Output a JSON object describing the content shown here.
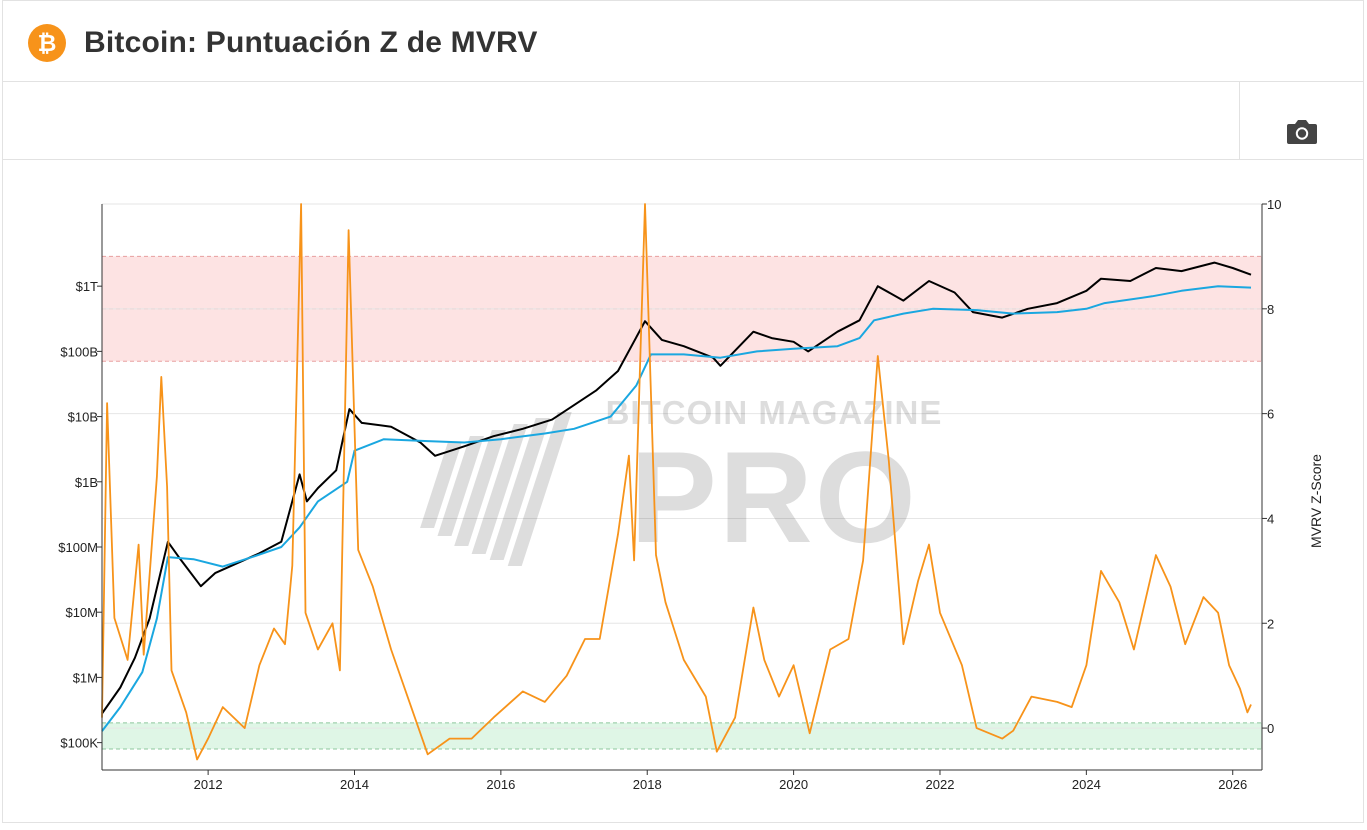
{
  "header": {
    "title": "Bitcoin: Puntuación Z de MVRV",
    "logo_icon": "bitcoin-logo-icon",
    "logo_color": "#f7931a"
  },
  "toolbar": {
    "camera_icon": "camera-icon"
  },
  "watermark": {
    "line1": "BITCOIN MAGAZINE",
    "line2": "PRO"
  },
  "colors": {
    "price": "#000000",
    "realized": "#1aa7e0",
    "zscore": "#f7931a",
    "red_band": "#fde3e3",
    "green_band": "#dff6e6"
  },
  "chart_data": {
    "type": "line",
    "x_ticks": [
      "2012",
      "2014",
      "2016",
      "2018",
      "2020",
      "2022",
      "2024",
      "2026"
    ],
    "y_left_ticks": [
      "$100K",
      "$1M",
      "$10M",
      "$100M",
      "$1B",
      "$10B",
      "$100B",
      "$1T"
    ],
    "y_left_scale": "log",
    "y_right_ticks": [
      "0",
      "2",
      "4",
      "6",
      "8",
      "10"
    ],
    "y_right_label": "MVRV Z-Score",
    "y_right_range": [
      -0.8,
      10
    ],
    "zones": [
      {
        "name": "red",
        "from": 7,
        "to": 9
      },
      {
        "name": "green",
        "from": -0.4,
        "to": 0.1
      }
    ],
    "series": [
      {
        "role": "market-cap",
        "color": "#000000",
        "points": [
          [
            2010.55,
            280000
          ],
          [
            2010.8,
            700000
          ],
          [
            2011.0,
            2000000
          ],
          [
            2011.2,
            8000000
          ],
          [
            2011.45,
            120000000
          ],
          [
            2011.6,
            70000000
          ],
          [
            2011.9,
            25000000
          ],
          [
            2012.1,
            40000000
          ],
          [
            2012.7,
            80000000
          ],
          [
            2013.0,
            120000000
          ],
          [
            2013.25,
            1300000000
          ],
          [
            2013.35,
            500000000
          ],
          [
            2013.5,
            800000000
          ],
          [
            2013.75,
            1500000000
          ],
          [
            2013.93,
            13000000000
          ],
          [
            2014.1,
            8000000000
          ],
          [
            2014.5,
            7000000000
          ],
          [
            2014.9,
            4000000000
          ],
          [
            2015.1,
            2500000000
          ],
          [
            2015.5,
            3500000000
          ],
          [
            2015.9,
            5000000000
          ],
          [
            2016.3,
            6500000000
          ],
          [
            2016.7,
            9000000000
          ],
          [
            2017.0,
            15000000000
          ],
          [
            2017.3,
            25000000000
          ],
          [
            2017.6,
            50000000000
          ],
          [
            2017.97,
            290000000000
          ],
          [
            2018.2,
            150000000000
          ],
          [
            2018.5,
            120000000000
          ],
          [
            2018.9,
            80000000000
          ],
          [
            2019.0,
            60000000000
          ],
          [
            2019.45,
            200000000000
          ],
          [
            2019.7,
            160000000000
          ],
          [
            2020.0,
            140000000000
          ],
          [
            2020.2,
            100000000000
          ],
          [
            2020.6,
            200000000000
          ],
          [
            2020.9,
            300000000000
          ],
          [
            2021.15,
            1000000000000
          ],
          [
            2021.5,
            600000000000
          ],
          [
            2021.85,
            1200000000000
          ],
          [
            2022.2,
            800000000000
          ],
          [
            2022.45,
            400000000000
          ],
          [
            2022.85,
            330000000000
          ],
          [
            2023.2,
            450000000000
          ],
          [
            2023.6,
            550000000000
          ],
          [
            2024.0,
            850000000000
          ],
          [
            2024.2,
            1300000000000
          ],
          [
            2024.6,
            1200000000000
          ],
          [
            2024.95,
            1900000000000
          ],
          [
            2025.3,
            1700000000000
          ],
          [
            2025.75,
            2300000000000
          ],
          [
            2026.0,
            1900000000000
          ],
          [
            2026.25,
            1500000000000
          ]
        ]
      },
      {
        "role": "realized-cap",
        "color": "#1aa7e0",
        "points": [
          [
            2010.55,
            150000
          ],
          [
            2010.8,
            350000
          ],
          [
            2011.1,
            1200000
          ],
          [
            2011.3,
            8000000
          ],
          [
            2011.45,
            70000000
          ],
          [
            2011.8,
            65000000
          ],
          [
            2012.2,
            50000000
          ],
          [
            2012.6,
            70000000
          ],
          [
            2013.0,
            100000000
          ],
          [
            2013.25,
            200000000
          ],
          [
            2013.5,
            500000000
          ],
          [
            2013.9,
            1000000000
          ],
          [
            2014.0,
            3000000000
          ],
          [
            2014.4,
            4500000000
          ],
          [
            2015.0,
            4200000000
          ],
          [
            2015.5,
            4000000000
          ],
          [
            2016.0,
            4500000000
          ],
          [
            2016.6,
            5500000000
          ],
          [
            2017.0,
            6500000000
          ],
          [
            2017.5,
            10000000000
          ],
          [
            2017.85,
            30000000000
          ],
          [
            2018.05,
            90000000000
          ],
          [
            2018.5,
            90000000000
          ],
          [
            2019.0,
            80000000000
          ],
          [
            2019.5,
            100000000000
          ],
          [
            2020.0,
            110000000000
          ],
          [
            2020.6,
            120000000000
          ],
          [
            2020.9,
            160000000000
          ],
          [
            2021.1,
            300000000000
          ],
          [
            2021.5,
            380000000000
          ],
          [
            2021.9,
            450000000000
          ],
          [
            2022.5,
            430000000000
          ],
          [
            2023.0,
            380000000000
          ],
          [
            2023.6,
            400000000000
          ],
          [
            2024.0,
            450000000000
          ],
          [
            2024.25,
            550000000000
          ],
          [
            2024.9,
            700000000000
          ],
          [
            2025.3,
            850000000000
          ],
          [
            2025.8,
            1000000000000
          ],
          [
            2026.25,
            950000000000
          ]
        ]
      },
      {
        "role": "mvrv-z-score",
        "color": "#f7931a",
        "points": [
          [
            2010.55,
            0.2
          ],
          [
            2010.62,
            6.2
          ],
          [
            2010.72,
            2.1
          ],
          [
            2010.9,
            1.3
          ],
          [
            2011.05,
            3.5
          ],
          [
            2011.12,
            1.4
          ],
          [
            2011.3,
            4.8
          ],
          [
            2011.36,
            6.7
          ],
          [
            2011.44,
            4.6
          ],
          [
            2011.5,
            1.1
          ],
          [
            2011.7,
            0.3
          ],
          [
            2011.85,
            -0.6
          ],
          [
            2012.0,
            -0.2
          ],
          [
            2012.2,
            0.4
          ],
          [
            2012.5,
            0.0
          ],
          [
            2012.7,
            1.2
          ],
          [
            2012.9,
            1.9
          ],
          [
            2013.05,
            1.6
          ],
          [
            2013.15,
            3.1
          ],
          [
            2013.27,
            10.0
          ],
          [
            2013.33,
            2.2
          ],
          [
            2013.5,
            1.5
          ],
          [
            2013.7,
            2.0
          ],
          [
            2013.8,
            1.1
          ],
          [
            2013.92,
            9.5
          ],
          [
            2014.05,
            3.4
          ],
          [
            2014.25,
            2.7
          ],
          [
            2014.5,
            1.5
          ],
          [
            2014.75,
            0.5
          ],
          [
            2015.0,
            -0.5
          ],
          [
            2015.3,
            -0.2
          ],
          [
            2015.6,
            -0.2
          ],
          [
            2015.9,
            0.2
          ],
          [
            2016.3,
            0.7
          ],
          [
            2016.6,
            0.5
          ],
          [
            2016.9,
            1.0
          ],
          [
            2017.15,
            1.7
          ],
          [
            2017.35,
            1.7
          ],
          [
            2017.6,
            3.7
          ],
          [
            2017.75,
            5.2
          ],
          [
            2017.82,
            3.2
          ],
          [
            2017.97,
            10.0
          ],
          [
            2018.12,
            3.3
          ],
          [
            2018.25,
            2.4
          ],
          [
            2018.5,
            1.3
          ],
          [
            2018.8,
            0.6
          ],
          [
            2018.95,
            -0.45
          ],
          [
            2019.2,
            0.2
          ],
          [
            2019.45,
            2.3
          ],
          [
            2019.6,
            1.3
          ],
          [
            2019.8,
            0.6
          ],
          [
            2020.0,
            1.2
          ],
          [
            2020.22,
            -0.1
          ],
          [
            2020.5,
            1.5
          ],
          [
            2020.75,
            1.7
          ],
          [
            2020.95,
            3.2
          ],
          [
            2021.15,
            7.1
          ],
          [
            2021.3,
            5.1
          ],
          [
            2021.5,
            1.6
          ],
          [
            2021.7,
            2.8
          ],
          [
            2021.85,
            3.5
          ],
          [
            2022.0,
            2.2
          ],
          [
            2022.3,
            1.2
          ],
          [
            2022.5,
            0.0
          ],
          [
            2022.85,
            -0.2
          ],
          [
            2023.0,
            -0.05
          ],
          [
            2023.25,
            0.6
          ],
          [
            2023.6,
            0.5
          ],
          [
            2023.8,
            0.4
          ],
          [
            2024.0,
            1.2
          ],
          [
            2024.2,
            3.0
          ],
          [
            2024.45,
            2.4
          ],
          [
            2024.65,
            1.5
          ],
          [
            2024.95,
            3.3
          ],
          [
            2025.15,
            2.7
          ],
          [
            2025.35,
            1.6
          ],
          [
            2025.6,
            2.5
          ],
          [
            2025.8,
            2.2
          ],
          [
            2025.95,
            1.2
          ],
          [
            2026.1,
            0.75
          ],
          [
            2026.2,
            0.3
          ],
          [
            2026.25,
            0.45
          ]
        ]
      }
    ]
  }
}
